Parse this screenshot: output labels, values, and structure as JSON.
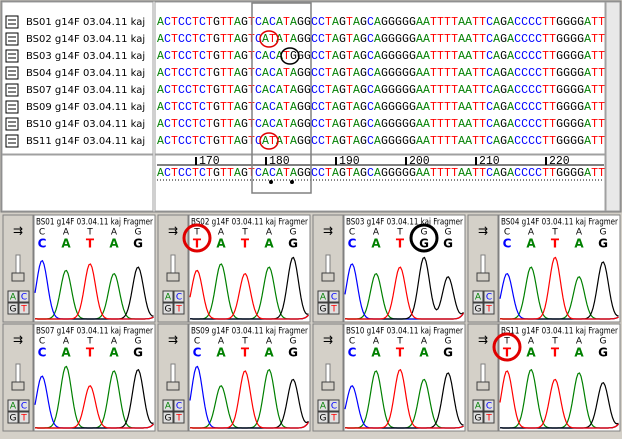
{
  "samples": [
    {
      "name": "BS01 g14F 03.04.11 kaj",
      "sequence": "ACTCCTCTGTTAGTCACATAGGCCTAGTAGCAGGGGGAATTTTAATTCAGACCCCTTGGGGATT"
    },
    {
      "name": "BS02 g14F 03.04.11 kaj",
      "sequence": "ACTCCTCTGTTAGTCATATAGGCCTAGTAGCAGGGGGAATTTTAATTCAGACCCCTTGGGGATT"
    },
    {
      "name": "BS03 g14F 03.04.11 kaj",
      "sequence": "ACTCCTCTGTTAGTCACATGGGCCTAGTAGCAGGGGGAATTTTAATTCAGACCCCTTGGGGATT"
    },
    {
      "name": "BS04 g14F 03.04.11 kaj",
      "sequence": "ACTCCTCTGTTAGTCACATAGGCCTAGTAGCAGGGGGAATTTTAATTCAGACCCCTTGGGGATT"
    },
    {
      "name": "BS07 g14F 03.04.11 kaj",
      "sequence": "ACTCCTCTGTTAGTCACATAGGCCTAGTAGCAGGGGGAATTTTAATTCAGACCCCTTGGGGATT"
    },
    {
      "name": "BS09 g14F 03.04.11 kaj",
      "sequence": "ACTCCTCTGTTAGTCACATAGGCCTAGTAGCAGGGGGAATTTTAATTCAGACCCCTTGGGGATT"
    },
    {
      "name": "BS10 g14F 03.04.11 kaj",
      "sequence": "ACTCCTCTGTTAGTCACATAGGCCTAGTAGCAGGGGGAATTTTAATTCAGACCCCTTGGGGATT"
    },
    {
      "name": "BS11 g14F 03.04.11 kaj",
      "sequence": "ACTCCTCTGTTAGTCATATAGGCCTAGTAGCAGGGGGAATTTTAATTCAGACCCCTTGGGGATT"
    }
  ],
  "ruler": [
    170,
    180,
    190,
    200,
    210,
    220
  ],
  "consensus": "ACTCCTCTGTTAGTCACATAGGCCTAGTAGCAGGGGGAATTTTAATTCAGACCCCTTGGGGATT",
  "buttons": [
    "A",
    "C",
    "G",
    "T"
  ],
  "traces": [
    {
      "title": "BS01 g14F 03.04.11 kaj Fragmer",
      "bases": [
        "C",
        "A",
        "T",
        "A",
        "G"
      ]
    },
    {
      "title": "BS02 g14F 03.04.11 kaj Fragmer",
      "bases": [
        "T",
        "A",
        "T",
        "A",
        "G"
      ]
    },
    {
      "title": "BS03 g14F 03.04.11 kaj Fragmer",
      "bases": [
        "C",
        "A",
        "T",
        "G",
        "G"
      ]
    },
    {
      "title": "BS04 g14F 03.04.11 kaj Fragmer",
      "bases": [
        "C",
        "A",
        "T",
        "A",
        "G"
      ]
    },
    {
      "title": "BS07 g14F 03.04.11 kaj Fragmer",
      "bases": [
        "C",
        "A",
        "T",
        "A",
        "G"
      ]
    },
    {
      "title": "BS09 g14F 03.04.11 kaj Fragmer",
      "bases": [
        "C",
        "A",
        "T",
        "A",
        "G"
      ]
    },
    {
      "title": "BS10 g14F 03.04.11 kaj Fragmer",
      "bases": [
        "C",
        "A",
        "T",
        "A",
        "G"
      ]
    },
    {
      "title": "BS11 g14F 03.04.11 kaj Fragmer",
      "bases": [
        "T",
        "A",
        "T",
        "A",
        "G"
      ]
    }
  ]
}
